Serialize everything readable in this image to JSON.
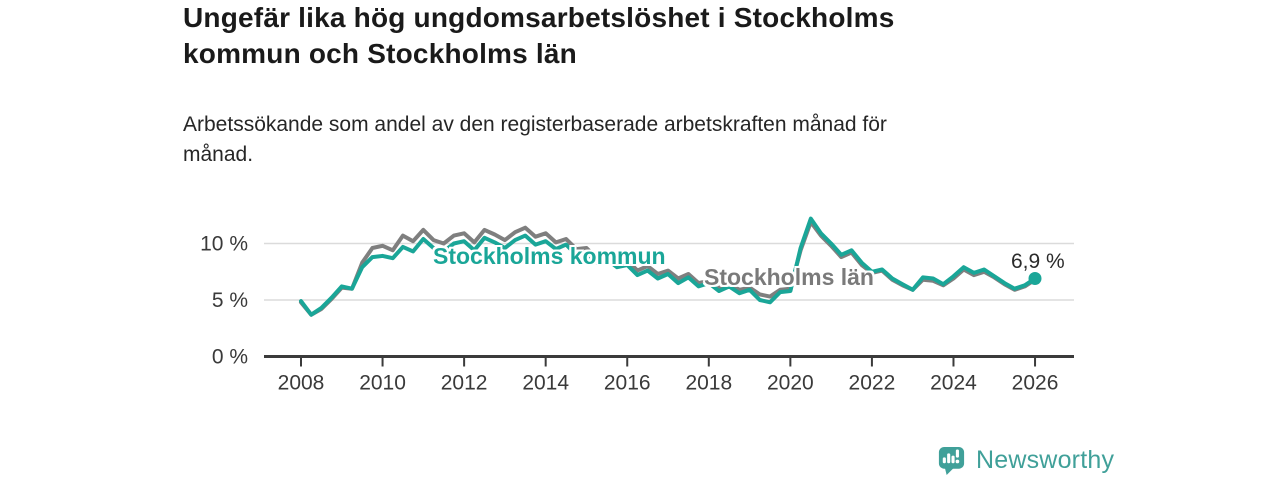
{
  "chart_data": {
    "type": "line",
    "title": "Ungefär lika hög ungdomsarbetslöshet i Stockholms kommun och Stockholms län",
    "subtitle": "Arbetssökande som andel av den registerbaserade arbetskraften månad för månad.",
    "unit": "%",
    "legend_position": "inline-labels-on-chart",
    "grid": "horizontal-only",
    "x_axis": {
      "range": [
        2007.2,
        2026.9
      ],
      "ticks": [
        {
          "year": 2008,
          "label": "2008"
        },
        {
          "year": 2010,
          "label": "2010"
        },
        {
          "year": 2012,
          "label": "2012"
        },
        {
          "year": 2014,
          "label": "2014"
        },
        {
          "year": 2016,
          "label": "2016"
        },
        {
          "year": 2018,
          "label": "2018"
        },
        {
          "year": 2020,
          "label": "2020"
        },
        {
          "year": 2022,
          "label": "2022"
        },
        {
          "year": 2024,
          "label": "2024"
        },
        {
          "year": 2026,
          "label": "2026"
        }
      ]
    },
    "y_axis": {
      "range": [
        0,
        13
      ],
      "gridline_values": [
        5,
        10
      ],
      "ticks": [
        {
          "value": 0,
          "label": "0 %"
        },
        {
          "value": 5,
          "label": "5 %"
        },
        {
          "value": 10,
          "label": "10 %"
        }
      ]
    },
    "sampling": {
      "x_start": 2008.0,
      "x_step": 0.25,
      "x_end": 2026.0
    },
    "series": [
      {
        "name": "Stockholms kommun",
        "color": "#1AA698",
        "values": [
          4.9,
          3.7,
          4.3,
          5.2,
          6.2,
          6.0,
          7.9,
          8.8,
          8.9,
          8.7,
          9.7,
          9.3,
          10.4,
          9.6,
          9.3,
          10.0,
          10.2,
          9.4,
          10.5,
          10.1,
          9.6,
          10.3,
          10.7,
          9.9,
          10.2,
          9.5,
          9.9,
          9.0,
          9.2,
          8.3,
          8.6,
          7.9,
          8.1,
          7.2,
          7.6,
          6.9,
          7.3,
          6.5,
          7.0,
          6.2,
          6.5,
          5.8,
          6.2,
          5.6,
          5.9,
          5.0,
          4.8,
          5.7,
          5.8,
          9.6,
          12.2,
          10.9,
          10.0,
          9.0,
          9.4,
          8.3,
          7.5,
          7.7,
          6.9,
          6.4,
          5.9,
          7.0,
          6.9,
          6.4,
          7.1,
          7.9,
          7.4,
          7.7,
          7.1,
          6.5,
          6.0,
          6.3,
          6.9
        ]
      },
      {
        "name": "Stockholms län",
        "color": "#7F7F7F",
        "values": [
          4.8,
          3.7,
          4.2,
          5.1,
          6.1,
          6.0,
          8.3,
          9.6,
          9.8,
          9.4,
          10.7,
          10.2,
          11.2,
          10.3,
          10.0,
          10.7,
          10.9,
          10.1,
          11.2,
          10.8,
          10.3,
          11.0,
          11.4,
          10.6,
          10.9,
          10.1,
          10.4,
          9.5,
          9.6,
          8.7,
          9.0,
          8.3,
          8.5,
          7.6,
          8.0,
          7.3,
          7.6,
          6.9,
          7.3,
          6.5,
          6.7,
          6.1,
          6.4,
          5.9,
          6.1,
          5.5,
          5.3,
          5.9,
          6.0,
          9.4,
          11.9,
          10.7,
          9.8,
          8.8,
          9.2,
          8.1,
          7.4,
          7.6,
          6.8,
          6.3,
          5.9,
          6.8,
          6.7,
          6.3,
          6.9,
          7.7,
          7.2,
          7.5,
          7.0,
          6.4,
          5.9,
          6.2,
          6.8
        ]
      }
    ],
    "end_annotation": {
      "label": "6,9 %",
      "series": "Stockholms kommun",
      "x": 2026.0,
      "value": 6.9
    },
    "colors": {
      "grid": "#DBDBDB",
      "axis": "#3B3B3B",
      "tick_text": "#3A3A3A"
    }
  },
  "footer": {
    "brand": "Newsworthy",
    "brand_color": "#40A099"
  }
}
